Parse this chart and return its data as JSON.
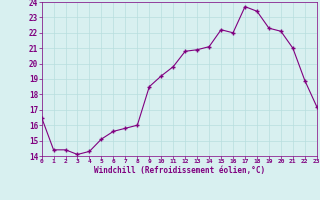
{
  "x": [
    0,
    1,
    2,
    3,
    4,
    5,
    6,
    7,
    8,
    9,
    10,
    11,
    12,
    13,
    14,
    15,
    16,
    17,
    18,
    19,
    20,
    21,
    22,
    23
  ],
  "y": [
    16.5,
    14.4,
    14.4,
    14.1,
    14.3,
    15.1,
    15.6,
    15.8,
    16.0,
    18.5,
    19.2,
    19.8,
    20.8,
    20.9,
    21.1,
    22.2,
    22.0,
    23.7,
    23.4,
    22.3,
    22.1,
    21.0,
    18.9,
    17.2
  ],
  "line_color": "#800080",
  "marker": "+",
  "marker_size": 3,
  "bg_color": "#d8f0f0",
  "grid_color": "#b8dede",
  "xlabel": "Windchill (Refroidissement éolien,°C)",
  "xlabel_color": "#800080",
  "tick_color": "#800080",
  "ylim": [
    14,
    24
  ],
  "xlim": [
    0,
    23
  ],
  "yticks": [
    14,
    15,
    16,
    17,
    18,
    19,
    20,
    21,
    22,
    23,
    24
  ],
  "xticks": [
    0,
    1,
    2,
    3,
    4,
    5,
    6,
    7,
    8,
    9,
    10,
    11,
    12,
    13,
    14,
    15,
    16,
    17,
    18,
    19,
    20,
    21,
    22,
    23
  ]
}
